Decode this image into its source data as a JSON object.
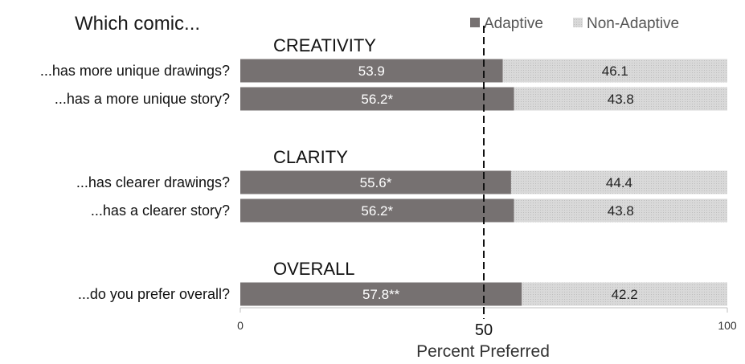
{
  "chart_data": {
    "type": "bar",
    "orientation": "horizontal",
    "stacked": true,
    "title": "Which comic...",
    "xlabel": "Percent Preferred",
    "xlim": [
      0,
      100
    ],
    "reference_line": 50,
    "ticks": [
      {
        "value": 0,
        "label": "0"
      },
      {
        "value": 50,
        "label": "50"
      },
      {
        "value": 100,
        "label": "100"
      }
    ],
    "legend": [
      {
        "name": "Adaptive",
        "color": "#767171"
      },
      {
        "name": "Non-Adaptive",
        "color": "#d4d4d4"
      }
    ],
    "groups": [
      {
        "name": "CREATIVITY",
        "items": [
          {
            "label": "...has more unique drawings?",
            "adaptive": 53.9,
            "adaptive_label": "53.9",
            "non_adaptive": 46.1,
            "non_adaptive_label": "46.1"
          },
          {
            "label": "...has a more unique story?",
            "adaptive": 56.2,
            "adaptive_label": "56.2*",
            "non_adaptive": 43.8,
            "non_adaptive_label": "43.8"
          }
        ]
      },
      {
        "name": "CLARITY",
        "items": [
          {
            "label": "...has clearer drawings?",
            "adaptive": 55.6,
            "adaptive_label": "55.6*",
            "non_adaptive": 44.4,
            "non_adaptive_label": "44.4"
          },
          {
            "label": "...has a clearer story?",
            "adaptive": 56.2,
            "adaptive_label": "56.2*",
            "non_adaptive": 43.8,
            "non_adaptive_label": "43.8"
          }
        ]
      },
      {
        "name": "OVERALL",
        "items": [
          {
            "label": "...do you prefer overall?",
            "adaptive": 57.8,
            "adaptive_label": "57.8**",
            "non_adaptive": 42.2,
            "non_adaptive_label": "42.2"
          }
        ]
      }
    ]
  }
}
